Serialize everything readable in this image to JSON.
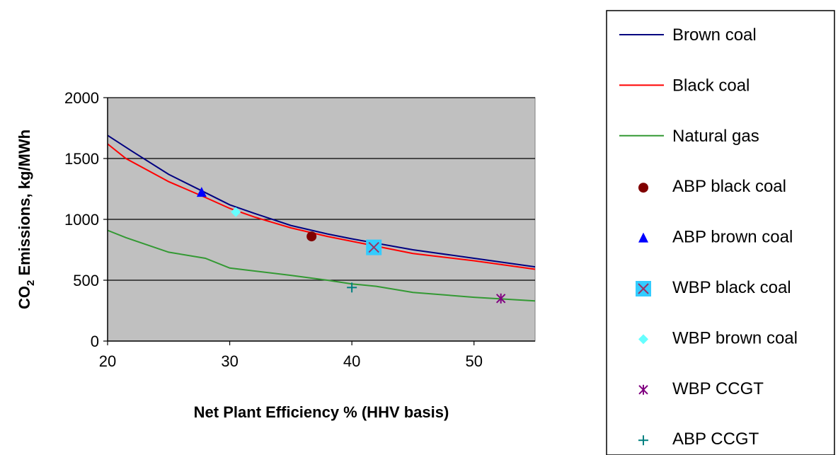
{
  "chart_data": {
    "type": "line",
    "title": "",
    "xlabel": "Net Plant Efficiency  % (HHV basis)",
    "ylabel_prefix": "CO",
    "ylabel_sub": "2",
    "ylabel_suffix": " Emissions, kg/MWh",
    "xlim": [
      20,
      55
    ],
    "ylim": [
      0,
      2000
    ],
    "x_ticks": [
      20,
      30,
      40,
      50
    ],
    "y_ticks": [
      0,
      500,
      1000,
      1500,
      2000
    ],
    "grid": "horizontal",
    "plot_background": "#c0c0c0",
    "legend_position": "right",
    "series": [
      {
        "name": "Brown coal",
        "kind": "line",
        "color": "#000080",
        "x": [
          20,
          22,
          25,
          28,
          30,
          32,
          35,
          38,
          40,
          45,
          50,
          55
        ],
        "y": [
          1690,
          1560,
          1370,
          1220,
          1120,
          1050,
          950,
          880,
          840,
          750,
          680,
          610
        ]
      },
      {
        "name": "Black coal",
        "kind": "line",
        "color": "#ff0000",
        "x": [
          20,
          21.5,
          25,
          28,
          30,
          32,
          35,
          38,
          40,
          45,
          50,
          55
        ],
        "y": [
          1620,
          1500,
          1310,
          1180,
          1090,
          1020,
          930,
          860,
          820,
          720,
          660,
          590
        ]
      },
      {
        "name": "Natural gas",
        "kind": "line",
        "color": "#339933",
        "x": [
          20,
          21.5,
          25,
          28,
          30,
          35,
          38,
          40,
          42,
          45,
          50,
          55
        ],
        "y": [
          910,
          850,
          730,
          680,
          600,
          540,
          500,
          470,
          450,
          400,
          360,
          330
        ]
      },
      {
        "name": "ABP black coal",
        "kind": "marker",
        "marker": "circle",
        "color": "#800000",
        "x": [
          36.7
        ],
        "y": [
          860
        ]
      },
      {
        "name": "ABP brown coal",
        "kind": "marker",
        "marker": "triangle",
        "color": "#0000ff",
        "x": [
          27.7
        ],
        "y": [
          1220
        ]
      },
      {
        "name": "WBP black coal",
        "kind": "marker",
        "marker": "square-x",
        "color": "#33ccff",
        "stroke": "#993366",
        "x": [
          41.8
        ],
        "y": [
          770
        ]
      },
      {
        "name": "WBP brown coal",
        "kind": "marker",
        "marker": "diamond",
        "color": "#66ffff",
        "x": [
          30.5
        ],
        "y": [
          1060
        ]
      },
      {
        "name": "WBP CCGT",
        "kind": "marker",
        "marker": "asterisk",
        "color": "#800080",
        "x": [
          52.2
        ],
        "y": [
          350
        ]
      },
      {
        "name": "ABP CCGT",
        "kind": "marker",
        "marker": "plus",
        "color": "#008080",
        "x": [
          40
        ],
        "y": [
          440
        ]
      }
    ]
  }
}
